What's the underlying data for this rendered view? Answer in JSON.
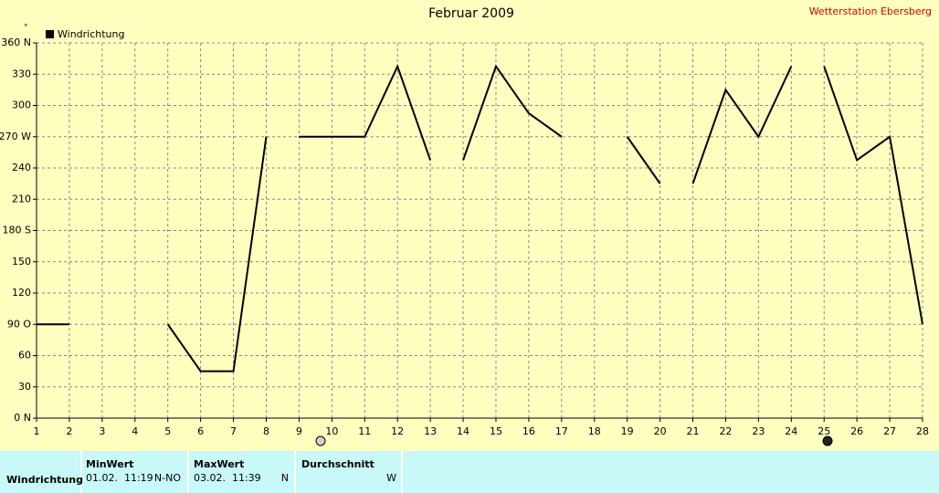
{
  "chart_data": {
    "type": "line",
    "title": "Februar 2009",
    "source": "Wetterstation Ebersberg",
    "y_unit": "°",
    "x": [
      1,
      2,
      2.5,
      5,
      6,
      7,
      8,
      8.5,
      9,
      10,
      11,
      12,
      13,
      13.5,
      14,
      15,
      16,
      17,
      18,
      19,
      20,
      20.5,
      21,
      22,
      23,
      24,
      24.5,
      25,
      26,
      27,
      28
    ],
    "series": [
      {
        "name": "Windrichtung",
        "color": "#000000",
        "values": [
          90,
          90,
          null,
          90,
          45,
          45,
          270,
          null,
          270,
          270,
          270,
          337.5,
          247.5,
          null,
          247.5,
          337.5,
          292.5,
          270,
          null,
          270,
          225,
          null,
          225,
          315,
          270,
          337.5,
          null,
          337.5,
          247.5,
          270,
          90
        ]
      }
    ],
    "xlim": [
      1,
      28
    ],
    "ylim": [
      0,
      360
    ],
    "xticks": [
      1,
      2,
      3,
      4,
      5,
      6,
      7,
      8,
      9,
      10,
      11,
      12,
      13,
      14,
      15,
      16,
      17,
      18,
      19,
      20,
      21,
      22,
      23,
      24,
      25,
      26,
      27,
      28
    ],
    "yticks": [
      {
        "value": 0,
        "label": "0 N"
      },
      30,
      60,
      {
        "value": 90,
        "label": "90 O"
      },
      120,
      150,
      {
        "value": 180,
        "label": "180 S"
      },
      210,
      240,
      {
        "value": 270,
        "label": "270 W"
      },
      300,
      330,
      {
        "value": 360,
        "label": "360 N"
      }
    ],
    "grid": true,
    "legend": "top-left"
  },
  "table": {
    "headers": [
      "MinWert",
      "MaxWert",
      "Durchschnitt"
    ],
    "row": {
      "label": "Windrichtung",
      "min_time": "01.02.  11:19",
      "min_dir": "N-NO",
      "max_time": "03.02.  11:39",
      "max_dir": "N",
      "avg": "W"
    }
  }
}
